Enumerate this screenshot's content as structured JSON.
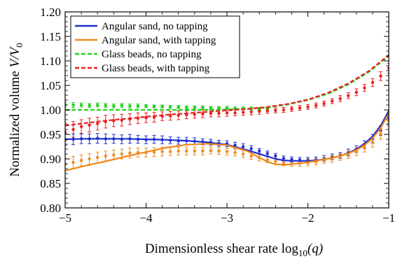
{
  "chart_data": {
    "type": "line",
    "xlabel_main": "Dimensionless shear rate log",
    "xlabel_sub": "10",
    "xlabel_arg": "(q)",
    "ylabel_main": "Normalized volume ",
    "ylabel_var": "V/V",
    "ylabel_sub": "0",
    "xlim": [
      -5,
      -1
    ],
    "ylim": [
      0.8,
      1.2
    ],
    "xticks": [
      {
        "value": -5,
        "label": "−5"
      },
      {
        "value": -4,
        "label": "−4"
      },
      {
        "value": -3,
        "label": "−3"
      },
      {
        "value": -2,
        "label": "−2"
      },
      {
        "value": -1,
        "label": "−1"
      }
    ],
    "yticks": [
      {
        "value": 0.8,
        "label": "0.80"
      },
      {
        "value": 0.85,
        "label": "0.85"
      },
      {
        "value": 0.9,
        "label": "0.90"
      },
      {
        "value": 0.95,
        "label": "0.95"
      },
      {
        "value": 1.0,
        "label": "1.00"
      },
      {
        "value": 1.05,
        "label": "1.05"
      },
      {
        "value": 1.1,
        "label": "1.10"
      },
      {
        "value": 1.15,
        "label": "1.15"
      },
      {
        "value": 1.2,
        "label": "1.20"
      }
    ],
    "legend_position": "top-left",
    "grid": false,
    "series": [
      {
        "name": "Angular sand, no tapping",
        "color": "#1f2fd0",
        "dash": "solid",
        "curve_x": [
          -5,
          -4.75,
          -4.5,
          -4.25,
          -4,
          -3.75,
          -3.5,
          -3.25,
          -3,
          -2.75,
          -2.5,
          -2.4,
          -2.3,
          -2.2,
          -2.1,
          -2,
          -1.9,
          -1.8,
          -1.7,
          -1.6,
          -1.5,
          -1.4,
          -1.3,
          -1.2,
          -1.1,
          -1
        ],
        "curve_y": [
          0.94,
          0.941,
          0.941,
          0.941,
          0.94,
          0.939,
          0.937,
          0.934,
          0.929,
          0.918,
          0.905,
          0.9,
          0.897,
          0.896,
          0.896,
          0.896,
          0.897,
          0.899,
          0.902,
          0.906,
          0.912,
          0.92,
          0.931,
          0.946,
          0.968,
          0.998
        ],
        "points_x": [
          -5,
          -4.9,
          -4.8,
          -4.7,
          -4.6,
          -4.5,
          -4.4,
          -4.3,
          -4.2,
          -4.1,
          -4,
          -3.9,
          -3.8,
          -3.7,
          -3.6,
          -3.5,
          -3.4,
          -3.3,
          -3.2,
          -3.1,
          -3,
          -2.9,
          -2.8,
          -2.7,
          -2.6,
          -2.5,
          -2.4,
          -2.3,
          -2.2,
          -2.1,
          -2,
          -1.9,
          -1.8,
          -1.7,
          -1.6,
          -1.5,
          -1.4,
          -1.3,
          -1.2,
          -1.1,
          -1
        ],
        "points_y": [
          0.94,
          0.94,
          0.941,
          0.941,
          0.942,
          0.941,
          0.941,
          0.94,
          0.941,
          0.94,
          0.939,
          0.94,
          0.939,
          0.938,
          0.937,
          0.937,
          0.936,
          0.935,
          0.934,
          0.932,
          0.931,
          0.928,
          0.925,
          0.921,
          0.916,
          0.911,
          0.906,
          0.901,
          0.899,
          0.898,
          0.898,
          0.899,
          0.901,
          0.904,
          0.907,
          0.913,
          0.92,
          0.929,
          0.941,
          0.958,
          0.984
        ],
        "errors": [
          0.012,
          0.011,
          0.01,
          0.01,
          0.01,
          0.01,
          0.009,
          0.009,
          0.009,
          0.008,
          0.008,
          0.008,
          0.008,
          0.007,
          0.007,
          0.007,
          0.007,
          0.006,
          0.006,
          0.006,
          0.006,
          0.006,
          0.006,
          0.006,
          0.005,
          0.005,
          0.005,
          0.005,
          0.005,
          0.005,
          0.005,
          0.005,
          0.006,
          0.006,
          0.006,
          0.007,
          0.007,
          0.008,
          0.009,
          0.01,
          0.012
        ]
      },
      {
        "name": "Angular sand, with tapping",
        "color": "#f08a1c",
        "dash": "solid",
        "curve_x": [
          -5,
          -4.75,
          -4.5,
          -4.25,
          -4,
          -3.75,
          -3.5,
          -3.25,
          -3,
          -2.75,
          -2.5,
          -2.4,
          -2.3,
          -2.2,
          -2.1,
          -2,
          -1.9,
          -1.8,
          -1.7,
          -1.6,
          -1.5,
          -1.4,
          -1.3,
          -1.2,
          -1.1,
          -1
        ],
        "curve_y": [
          0.876,
          0.886,
          0.895,
          0.905,
          0.914,
          0.923,
          0.929,
          0.931,
          0.928,
          0.916,
          0.894,
          0.889,
          0.888,
          0.889,
          0.891,
          0.893,
          0.896,
          0.899,
          0.902,
          0.906,
          0.911,
          0.918,
          0.928,
          0.942,
          0.963,
          0.993
        ],
        "points_x": [
          -5,
          -4.9,
          -4.8,
          -4.7,
          -4.6,
          -4.5,
          -4.4,
          -4.3,
          -4.2,
          -4.1,
          -4,
          -3.9,
          -3.8,
          -3.7,
          -3.6,
          -3.5,
          -3.4,
          -3.3,
          -3.2,
          -3.1,
          -3,
          -2.9,
          -2.8,
          -2.7,
          -2.6,
          -2.5,
          -2.4,
          -2.3,
          -2.2,
          -2.1,
          -2,
          -1.9,
          -1.8,
          -1.7,
          -1.6,
          -1.5,
          -1.4,
          -1.3,
          -1.2,
          -1.1,
          -1
        ],
        "points_y": [
          0.889,
          0.893,
          0.897,
          0.9,
          0.903,
          0.906,
          0.908,
          0.91,
          0.912,
          0.913,
          0.913,
          0.914,
          0.915,
          0.915,
          0.916,
          0.916,
          0.916,
          0.916,
          0.917,
          0.916,
          0.915,
          0.913,
          0.91,
          0.906,
          0.902,
          0.898,
          0.895,
          0.892,
          0.891,
          0.891,
          0.892,
          0.894,
          0.897,
          0.9,
          0.904,
          0.909,
          0.915,
          0.923,
          0.934,
          0.951,
          0.978
        ],
        "errors": [
          0.012,
          0.012,
          0.011,
          0.011,
          0.011,
          0.01,
          0.01,
          0.01,
          0.01,
          0.009,
          0.009,
          0.009,
          0.009,
          0.008,
          0.008,
          0.008,
          0.008,
          0.008,
          0.007,
          0.007,
          0.007,
          0.007,
          0.007,
          0.007,
          0.006,
          0.006,
          0.006,
          0.006,
          0.006,
          0.006,
          0.006,
          0.006,
          0.006,
          0.007,
          0.007,
          0.008,
          0.008,
          0.009,
          0.01,
          0.011,
          0.012
        ]
      },
      {
        "name": "Glass beads, no tapping",
        "color": "#22d41c",
        "dash": "dashed",
        "curve_x": [
          -5,
          -4.75,
          -4.5,
          -4.25,
          -4,
          -3.75,
          -3.5,
          -3.25,
          -3,
          -2.75,
          -2.5,
          -2.25,
          -2,
          -1.75,
          -1.5,
          -1.25,
          -1
        ],
        "curve_y": [
          1.0,
          1.0,
          1.0,
          1.0,
          1.0,
          1.0,
          1.0,
          1.0,
          1.001,
          1.002,
          1.005,
          1.011,
          1.02,
          1.033,
          1.052,
          1.077,
          1.11
        ],
        "points_x": [
          -5,
          -4.9,
          -4.8,
          -4.7,
          -4.6,
          -4.5,
          -4.4,
          -4.3,
          -4.2,
          -4.1,
          -4,
          -3.9,
          -3.8,
          -3.7,
          -3.6,
          -3.5,
          -3.4,
          -3.3,
          -3.2,
          -3.1,
          -3,
          -2.9,
          -2.8,
          -2.7,
          -2.6,
          -2.5
        ],
        "points_y": [
          1.011,
          1.01,
          1.01,
          1.009,
          1.01,
          1.009,
          1.008,
          1.009,
          1.008,
          1.008,
          1.008,
          1.007,
          1.007,
          1.006,
          1.006,
          1.005,
          1.005,
          1.005,
          1.004,
          1.004,
          1.004,
          1.003,
          1.003,
          1.003,
          1.002,
          1.002
        ],
        "errors": [
          0.005,
          0.005,
          0.004,
          0.004,
          0.004,
          0.004,
          0.004,
          0.004,
          0.004,
          0.004,
          0.003,
          0.003,
          0.003,
          0.003,
          0.003,
          0.003,
          0.003,
          0.003,
          0.003,
          0.003,
          0.003,
          0.003,
          0.003,
          0.003,
          0.003,
          0.003
        ]
      },
      {
        "name": "Glass beads, with tapping",
        "color": "#e8201e",
        "dash": "dashed",
        "curve_x": [
          -5,
          -4.75,
          -4.5,
          -4.25,
          -4,
          -3.75,
          -3.5,
          -3.25,
          -3,
          -2.75,
          -2.5,
          -2.25,
          -2,
          -1.75,
          -1.5,
          -1.25,
          -1
        ],
        "curve_y": [
          0.968,
          0.973,
          0.978,
          0.982,
          0.986,
          0.99,
          0.993,
          0.996,
          0.999,
          1.002,
          1.006,
          1.012,
          1.021,
          1.035,
          1.054,
          1.079,
          1.112
        ],
        "points_x": [
          -5,
          -4.9,
          -4.8,
          -4.7,
          -4.6,
          -4.5,
          -4.4,
          -4.3,
          -4.2,
          -4.1,
          -4,
          -3.9,
          -3.8,
          -3.7,
          -3.6,
          -3.5,
          -3.4,
          -3.3,
          -3.2,
          -3.1,
          -3,
          -2.9,
          -2.8,
          -2.7,
          -2.6,
          -2.5,
          -2.4,
          -2.3,
          -2.2,
          -2.1,
          -2,
          -1.9,
          -1.8,
          -1.7,
          -1.6,
          -1.5,
          -1.4,
          -1.3,
          -1.2,
          -1.1,
          -1
        ],
        "points_y": [
          0.955,
          0.96,
          0.966,
          0.969,
          0.972,
          0.976,
          0.978,
          0.979,
          0.981,
          0.983,
          0.984,
          0.985,
          0.987,
          0.988,
          0.989,
          0.99,
          0.991,
          0.992,
          0.993,
          0.993,
          0.994,
          0.994,
          0.995,
          0.996,
          0.997,
          0.998,
          0.999,
          1.0,
          1.002,
          1.004,
          1.006,
          1.009,
          1.013,
          1.018,
          1.023,
          1.029,
          1.036,
          1.045,
          1.056,
          1.069,
          1.085
        ],
        "errors": [
          0.018,
          0.016,
          0.014,
          0.014,
          0.013,
          0.013,
          0.012,
          0.012,
          0.011,
          0.011,
          0.01,
          0.01,
          0.009,
          0.009,
          0.009,
          0.008,
          0.008,
          0.008,
          0.007,
          0.007,
          0.007,
          0.006,
          0.006,
          0.006,
          0.006,
          0.005,
          0.005,
          0.005,
          0.005,
          0.005,
          0.005,
          0.005,
          0.005,
          0.005,
          0.006,
          0.006,
          0.007,
          0.007,
          0.008,
          0.009,
          0.01
        ]
      }
    ]
  }
}
